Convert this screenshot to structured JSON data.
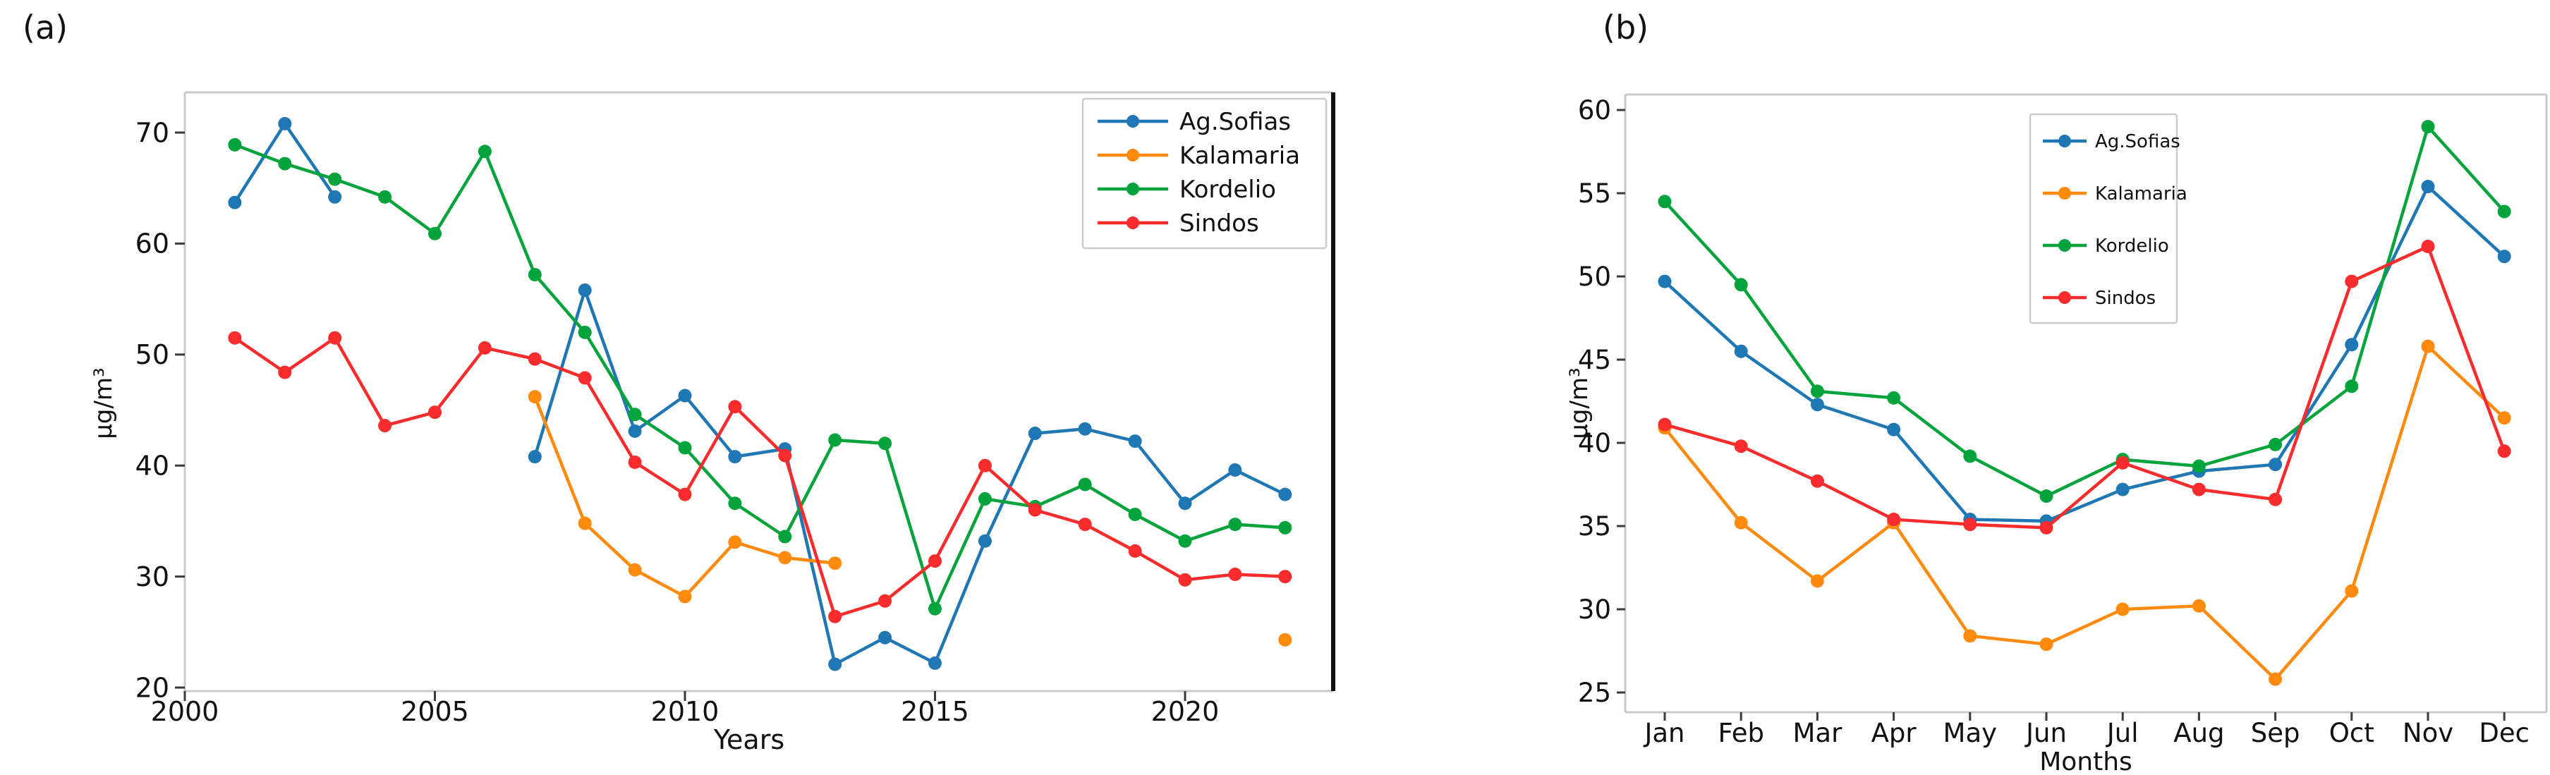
{
  "figure": {
    "panel_a_tag": "(a)",
    "panel_b_tag": "(b)"
  },
  "colors": {
    "ag_sofias": "#1f77b4",
    "kalamaria": "#ff8a0e",
    "kordelio": "#05a33c",
    "sindos": "#f82c2c",
    "spine": "#c9c9c9",
    "tick": "#3a3a3a",
    "text": "#111111",
    "panel_a_right_border": "#111111",
    "legend_border": "#cccccc",
    "legend_bg": "#ffffff"
  },
  "legend": {
    "entries": [
      "Ag.Sofias",
      "Kalamaria",
      "Kordelio",
      "Sindos"
    ],
    "series_keys": [
      "ag_sofias",
      "kalamaria",
      "kordelio",
      "sindos"
    ]
  },
  "chart_data": [
    {
      "id": "panel-a",
      "type": "line",
      "title": "",
      "xlabel": "Years",
      "ylabel": "µg/m³",
      "xlim": [
        1999.9,
        2023.1
      ],
      "ylim": [
        19.7,
        73.6
      ],
      "xticks": [
        2000,
        2005,
        2010,
        2015,
        2020
      ],
      "yticks": [
        20,
        30,
        40,
        50,
        60,
        70
      ],
      "grid": false,
      "legend_position": "upper right",
      "x": [
        2001,
        2002,
        2003,
        2004,
        2005,
        2006,
        2007,
        2008,
        2009,
        2010,
        2011,
        2012,
        2013,
        2014,
        2015,
        2016,
        2017,
        2018,
        2019,
        2020,
        2021,
        2022
      ],
      "series": [
        {
          "name": "Ag.Sofias",
          "color_key": "ag_sofias",
          "values": [
            63.7,
            70.8,
            64.2,
            null,
            null,
            null,
            40.8,
            55.8,
            43.1,
            46.3,
            40.8,
            41.5,
            22.1,
            24.5,
            22.2,
            33.2,
            42.9,
            43.3,
            42.2,
            36.6,
            39.6,
            37.4
          ]
        },
        {
          "name": "Kalamaria",
          "color_key": "kalamaria",
          "values": [
            null,
            null,
            null,
            null,
            null,
            null,
            46.2,
            34.8,
            30.6,
            28.2,
            33.1,
            31.7,
            31.2,
            null,
            null,
            null,
            null,
            null,
            null,
            null,
            null,
            24.3
          ]
        },
        {
          "name": "Kordelio",
          "color_key": "kordelio",
          "values": [
            68.9,
            67.2,
            65.8,
            64.2,
            60.9,
            68.3,
            57.2,
            52.0,
            44.6,
            41.6,
            36.6,
            33.6,
            42.3,
            42.0,
            27.1,
            37.0,
            36.3,
            38.3,
            35.6,
            33.2,
            34.7,
            34.4
          ]
        },
        {
          "name": "Sindos",
          "color_key": "sindos",
          "values": [
            51.5,
            48.4,
            51.5,
            43.6,
            44.8,
            50.6,
            49.6,
            47.9,
            40.3,
            37.4,
            45.3,
            40.9,
            26.4,
            27.8,
            31.4,
            40.0,
            36.0,
            34.7,
            32.3,
            29.7,
            30.2,
            30.0
          ]
        }
      ]
    },
    {
      "id": "panel-b",
      "type": "line",
      "title": "",
      "xlabel": "Months",
      "ylabel": "µg/m³",
      "ylim": [
        23.8,
        60.9
      ],
      "yticks": [
        25,
        30,
        35,
        40,
        45,
        50,
        55,
        60
      ],
      "grid": false,
      "legend_position": "upper right",
      "categories": [
        "Jan",
        "Feb",
        "Mar",
        "Apr",
        "May",
        "Jun",
        "Jul",
        "Aug",
        "Sep",
        "Oct",
        "Nov",
        "Dec"
      ],
      "series": [
        {
          "name": "Ag.Sofias",
          "color_key": "ag_sofias",
          "values": [
            49.7,
            45.5,
            42.3,
            40.8,
            35.4,
            35.3,
            37.2,
            38.3,
            38.7,
            45.9,
            55.4,
            51.2
          ]
        },
        {
          "name": "Kalamaria",
          "color_key": "kalamaria",
          "values": [
            40.9,
            35.2,
            31.7,
            35.2,
            28.4,
            27.9,
            30.0,
            30.2,
            25.8,
            31.1,
            45.8,
            41.5
          ]
        },
        {
          "name": "Kordelio",
          "color_key": "kordelio",
          "values": [
            54.5,
            49.5,
            43.1,
            42.7,
            39.2,
            36.8,
            39.0,
            38.6,
            39.9,
            43.4,
            59.0,
            53.9
          ]
        },
        {
          "name": "Sindos",
          "color_key": "sindos",
          "values": [
            41.1,
            39.8,
            37.7,
            35.4,
            35.1,
            34.9,
            38.8,
            37.2,
            36.6,
            49.7,
            51.8,
            39.5
          ]
        }
      ]
    }
  ]
}
